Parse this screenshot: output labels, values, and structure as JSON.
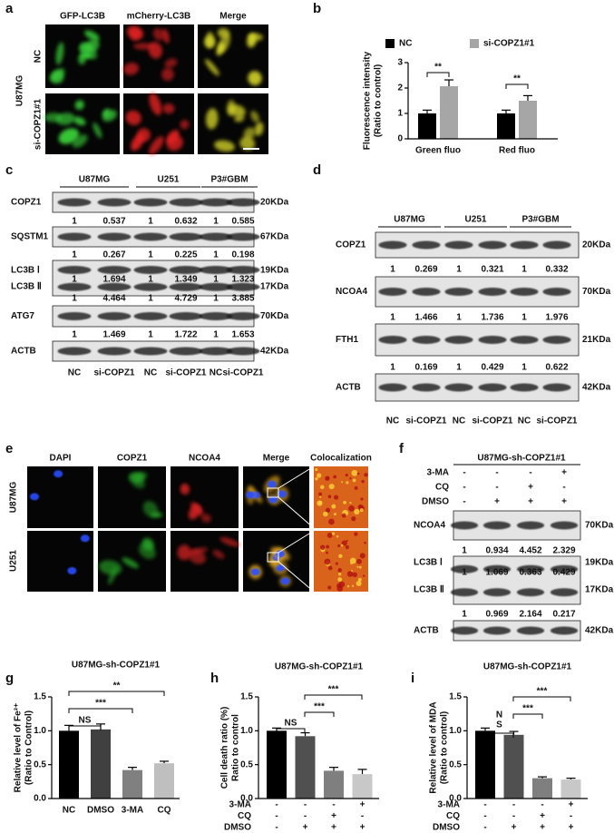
{
  "panel_labels": [
    "a",
    "b",
    "c",
    "d",
    "e",
    "f",
    "g",
    "h",
    "i"
  ],
  "panel_a": {
    "columns": [
      "GFP-LC3B",
      "mCherry-LC3B",
      "Merge"
    ],
    "rows": [
      "NC",
      "si-COPZ1#1"
    ],
    "cell_line": "U87MG"
  },
  "panel_c": {
    "groups": [
      "U87MG",
      "U251",
      "P3#GBM"
    ],
    "rows": [
      {
        "label": "COPZ1",
        "kda": "20KDa",
        "quant": [
          1,
          0.537,
          1,
          0.632,
          1,
          0.585
        ]
      },
      {
        "label": "SQSTM1",
        "kda": "67KDa",
        "quant": [
          1,
          0.267,
          1,
          0.225,
          1,
          0.198
        ]
      },
      {
        "label": "LC3B Ⅰ",
        "kda": "19KDa",
        "label2": "LC3B Ⅱ",
        "kda2": "17KDa",
        "quant_inner": [
          1,
          1.694,
          1,
          1.349,
          1,
          1.323
        ],
        "quant": [
          1,
          4.464,
          1,
          4.729,
          1,
          3.885
        ]
      },
      {
        "label": "ATG7",
        "kda": "70KDa",
        "quant": [
          1,
          1.469,
          1,
          1.722,
          1,
          1.653
        ]
      },
      {
        "label": "ACTB",
        "kda": "42KDa"
      }
    ],
    "lanes": [
      "NC",
      "si-COPZ1",
      "NC",
      "si-COPZ1",
      "NC",
      "si-COPZ1"
    ]
  },
  "panel_d": {
    "groups": [
      "U87MG",
      "U251",
      "P3#GBM"
    ],
    "rows": [
      {
        "label": "COPZ1",
        "kda": "20KDa",
        "quant": [
          1,
          0.269,
          1,
          0.321,
          1,
          0.332
        ]
      },
      {
        "label": "NCOA4",
        "kda": "70KDa",
        "quant": [
          1,
          1.466,
          1,
          1.736,
          1,
          1.976
        ]
      },
      {
        "label": "FTH1",
        "kda": "21KDa",
        "quant": [
          1,
          0.169,
          1,
          0.429,
          1,
          0.622
        ]
      },
      {
        "label": "ACTB",
        "kda": "42KDa"
      }
    ],
    "lanes": [
      "NC",
      "si-COPZ1",
      "NC",
      "si-COPZ1",
      "NC",
      "si-COPZ1"
    ]
  },
  "panel_e": {
    "columns": [
      "DAPI",
      "COPZ1",
      "NCOA4",
      "Merge",
      "Colocalization"
    ],
    "rows": [
      "U87MG",
      "U251"
    ]
  },
  "panel_f": {
    "title": "U87MG-sh-COPZ1#1",
    "treatments": {
      "labels": [
        "3-MA",
        "CQ",
        "DMSO"
      ],
      "signs": [
        [
          "-",
          "-",
          "-",
          "+"
        ],
        [
          "-",
          "-",
          "+",
          "-"
        ],
        [
          "-",
          "+",
          "+",
          "+"
        ]
      ]
    },
    "rows": [
      {
        "label": "NCOA4",
        "kda": "70KDa",
        "quant": [
          1,
          0.934,
          4.452,
          2.329
        ]
      },
      {
        "label": "LC3B Ⅰ",
        "kda": "19KDa",
        "label2": "LC3B Ⅱ",
        "kda2": "17KDa",
        "quant_inner": [
          1,
          1.069,
          0.363,
          0.429
        ],
        "quant": [
          1,
          0.969,
          2.164,
          0.217
        ]
      },
      {
        "label": "ACTB",
        "kda": "42KDa"
      }
    ]
  },
  "chart_data": [
    {
      "type": "bar",
      "y_title": "Fluorescence intensity",
      "y_subtitle": "(Ratio to control)",
      "categories": [
        "Green fluo",
        "Red fluo"
      ],
      "series": [
        {
          "name": "NC",
          "color": "#000000",
          "values": [
            1,
            1
          ],
          "errors": [
            0.13,
            0.13
          ]
        },
        {
          "name": "si-COPZ1#1",
          "color": "#a6a6a6",
          "values": [
            2.07,
            1.5
          ],
          "errors": [
            0.25,
            0.2
          ]
        }
      ],
      "ylim": [
        0,
        3
      ],
      "yticks": [
        0,
        1,
        2,
        3
      ],
      "annotations": [
        "**",
        "**"
      ]
    },
    {
      "type": "bar",
      "title": "U87MG-sh-COPZ1#1",
      "y_title": "Relative level of Fe²⁺",
      "y_subtitle": "(Ratio to Control)",
      "categories": [
        "NC",
        "DMSO",
        "3-MA",
        "CQ"
      ],
      "series": [
        {
          "colors": [
            "#000000",
            "#404040",
            "#808080",
            "#bfbfbf"
          ],
          "values": [
            1,
            1.02,
            0.42,
            0.52
          ],
          "errors": [
            0.08,
            0.08,
            0.04,
            0.03
          ]
        }
      ],
      "ylim": [
        0,
        1.5
      ],
      "yticks": [
        {
          "value": 0,
          "label": "0.0"
        },
        {
          "value": 0.5,
          "label": "0.5"
        },
        {
          "value": 1,
          "label": "1.0"
        },
        {
          "value": 1.5,
          "label": "1.5"
        }
      ],
      "annotations": [
        "NS",
        "***",
        "**"
      ]
    },
    {
      "type": "bar",
      "title": "U87MG-sh-COPZ1#1",
      "y_title": "Cell death ratio (%)",
      "y_subtitle": "Ratio to control",
      "categories": [
        null,
        null,
        null,
        null
      ],
      "treatments": {
        "labels": [
          "3-MA",
          "CQ",
          "DMSO"
        ],
        "signs": [
          [
            "-",
            "-",
            "-",
            "+"
          ],
          [
            "-",
            "-",
            "+",
            "-"
          ],
          [
            "-",
            "+",
            "+",
            "+"
          ]
        ]
      },
      "series": [
        {
          "colors": [
            "#000000",
            "#505050",
            "#7f7f7f",
            "#c8c8c8"
          ],
          "values": [
            1,
            0.92,
            0.41,
            0.36
          ],
          "errors": [
            0.04,
            0.05,
            0.05,
            0.07
          ]
        }
      ],
      "ylim": [
        0,
        1.5
      ],
      "yticks": [
        {
          "value": 0,
          "label": "0.0"
        },
        {
          "value": 0.5,
          "label": "0.5"
        },
        {
          "value": 1,
          "label": "1.0"
        },
        {
          "value": 1.5,
          "label": "1.5"
        }
      ],
      "annotations": [
        "NS",
        "***",
        "***"
      ]
    },
    {
      "type": "bar",
      "title": "U87MG-sh-COPZ1#1",
      "y_title": "Relative level of MDA",
      "y_subtitle": "(Ratio to control)",
      "categories": [
        null,
        null,
        null,
        null
      ],
      "treatments": {
        "labels": [
          "3-MA",
          "CQ",
          "DMSO"
        ],
        "signs": [
          [
            "-",
            "-",
            "-",
            "+"
          ],
          [
            "-",
            "-",
            "+",
            "-"
          ],
          [
            "-",
            "+",
            "+",
            "+"
          ]
        ]
      },
      "series": [
        {
          "colors": [
            "#000000",
            "#505050",
            "#7f7f7f",
            "#c8c8c8"
          ],
          "values": [
            1,
            0.94,
            0.3,
            0.28
          ],
          "errors": [
            0.04,
            0.05,
            0.02,
            0.02
          ]
        }
      ],
      "ylim": [
        0,
        1.5
      ],
      "yticks": [
        {
          "value": 0,
          "label": "0.0"
        },
        {
          "value": 0.5,
          "label": "0.5"
        },
        {
          "value": 1,
          "label": "1.0"
        },
        {
          "value": 1.5,
          "label": "1.5"
        }
      ],
      "annotations": [
        "N",
        "S",
        "***",
        "***"
      ]
    }
  ]
}
